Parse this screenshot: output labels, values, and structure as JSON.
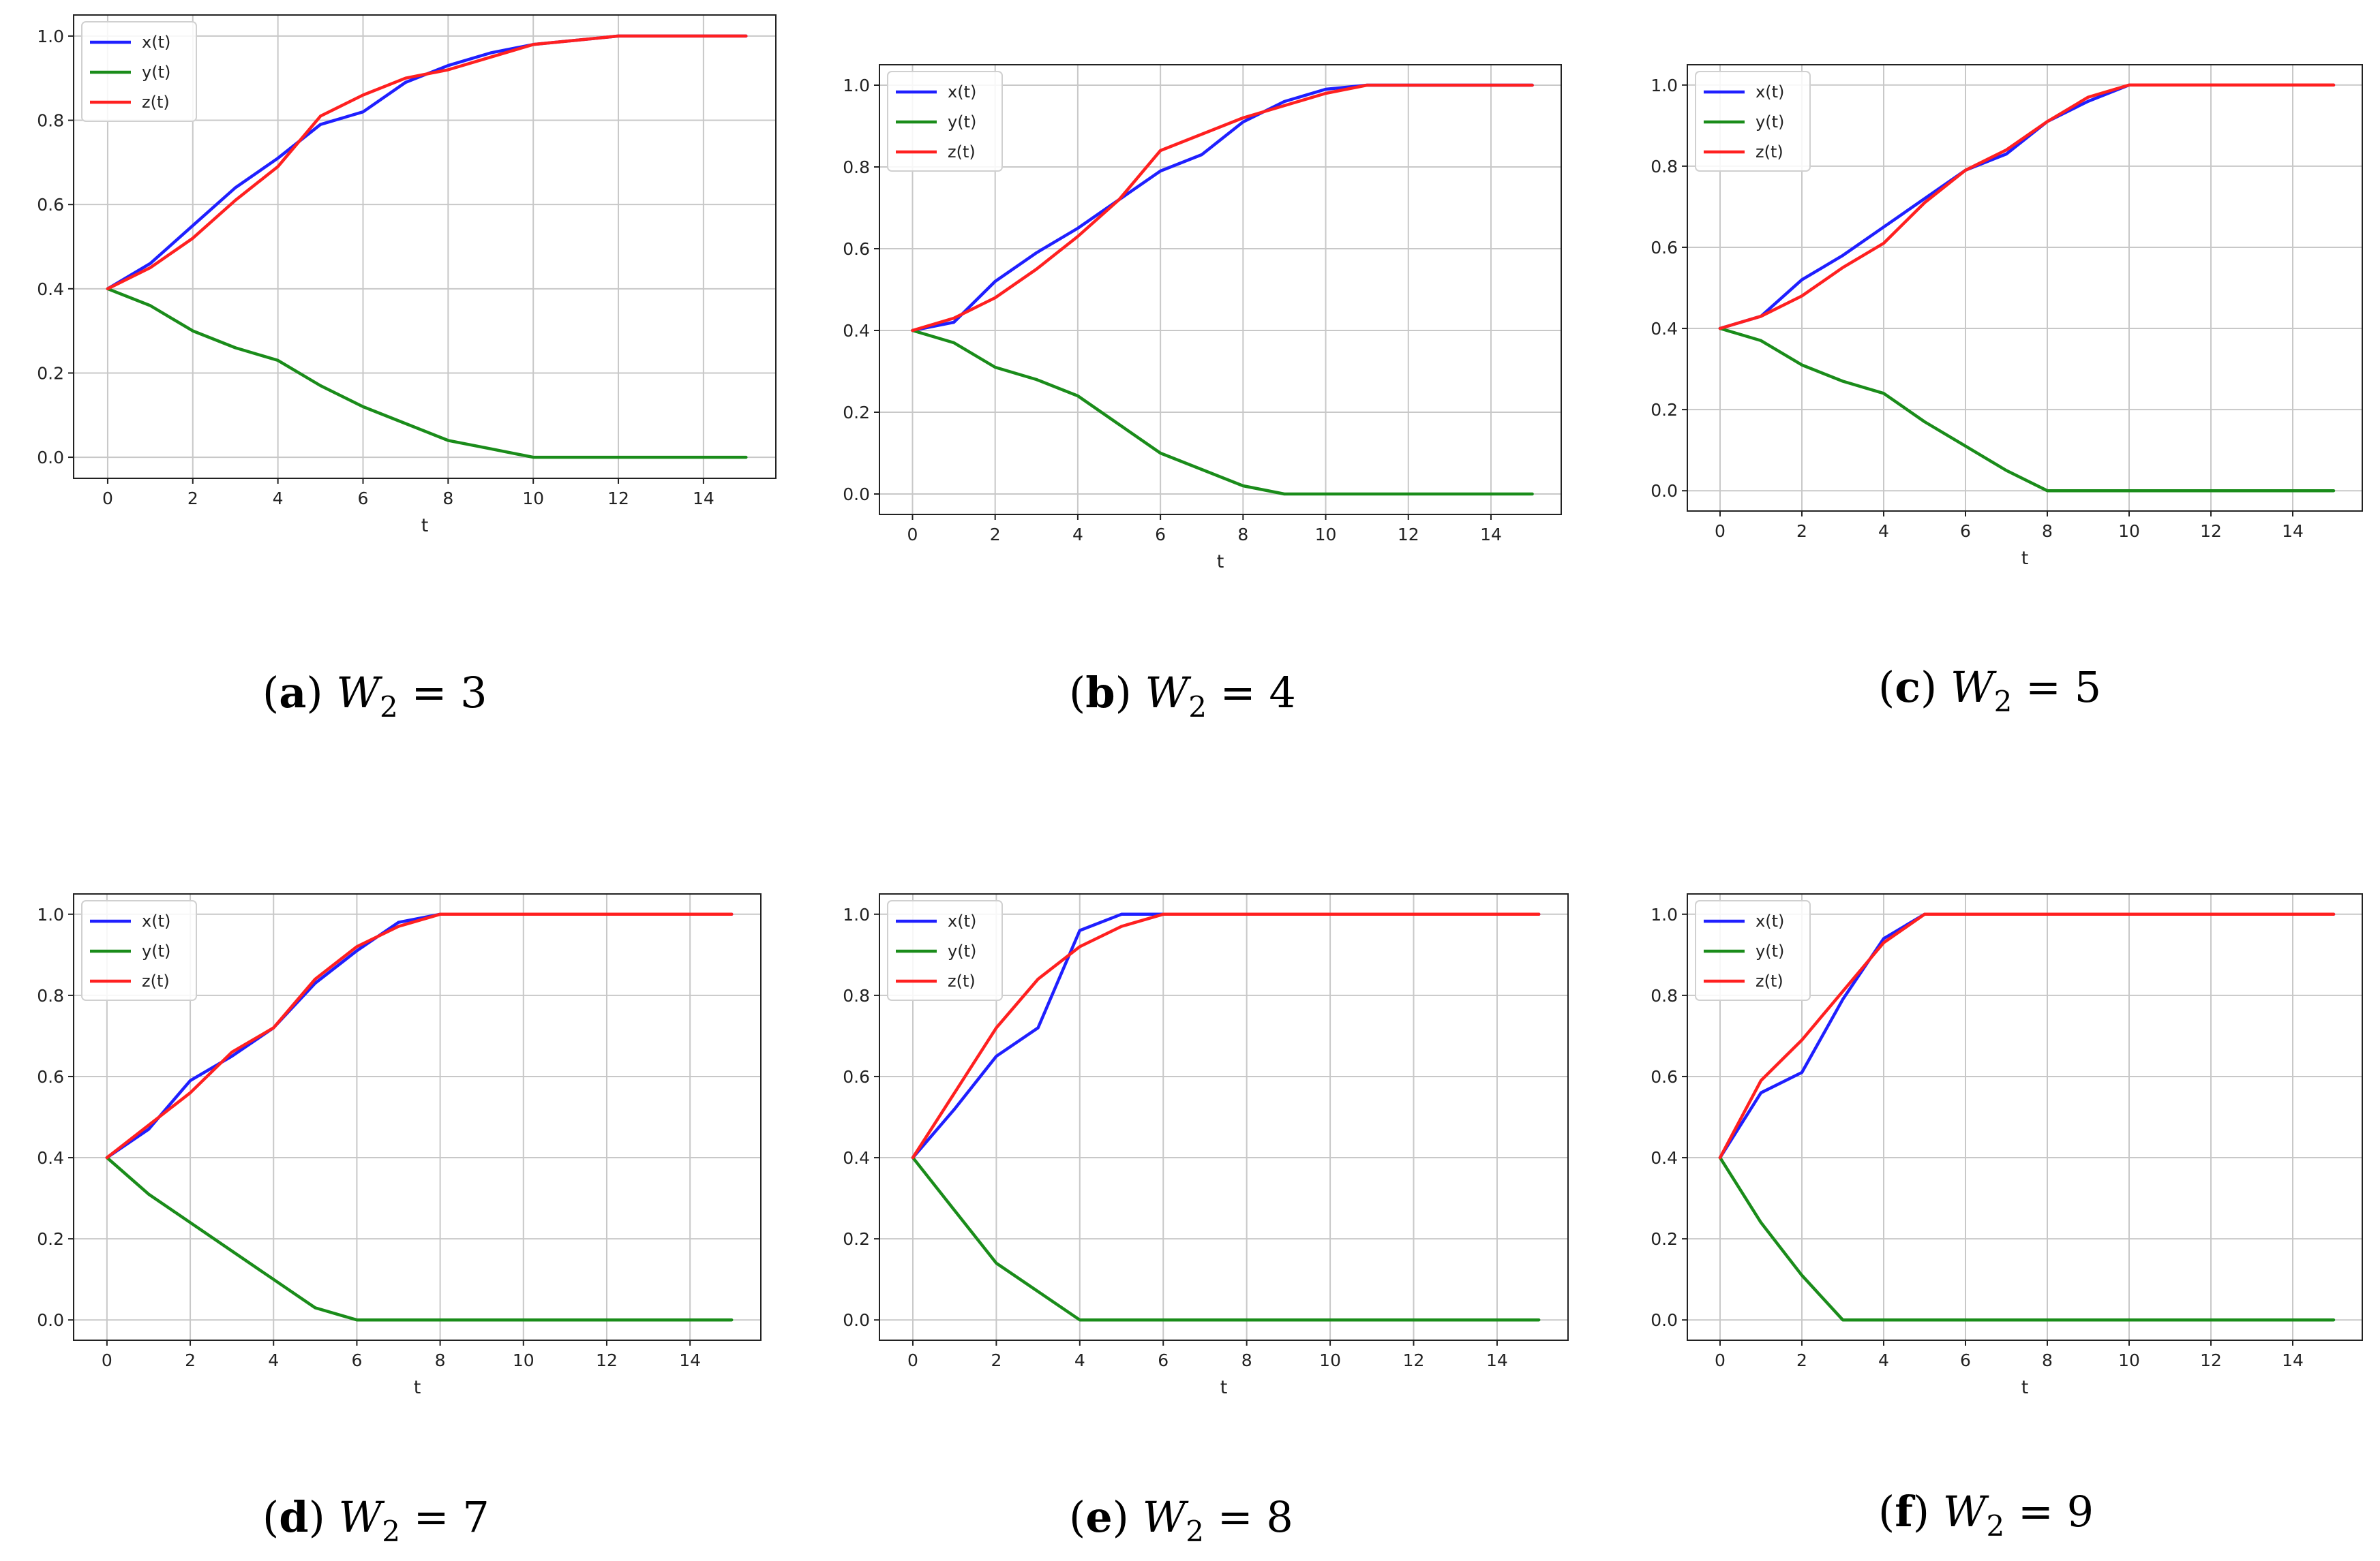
{
  "chart_data": [
    {
      "type": "line",
      "caption_letter": "a",
      "caption_var": "W",
      "caption_sub": "2",
      "caption_rhs": "3",
      "xlabel": "t",
      "ylabel": "",
      "xlim": [
        -0.8,
        15.7
      ],
      "ylim": [
        -0.05,
        1.05
      ],
      "xticks": [
        "0",
        "2",
        "4",
        "6",
        "8",
        "10",
        "12",
        "14"
      ],
      "yticks": [
        "0.0",
        "0.2",
        "0.4",
        "0.6",
        "0.8",
        "1.0"
      ],
      "grid": true,
      "legend_position": "top-left",
      "x": [
        0,
        1,
        2,
        3,
        4,
        5,
        6,
        7,
        8,
        9,
        10,
        11,
        12,
        13,
        14,
        15
      ],
      "series": [
        {
          "name": "x(t)",
          "color": "#1f1fff",
          "values": [
            0.4,
            0.46,
            0.55,
            0.64,
            0.71,
            0.79,
            0.82,
            0.89,
            0.93,
            0.96,
            0.98,
            0.99,
            1.0,
            1.0,
            1.0,
            1.0
          ]
        },
        {
          "name": "y(t)",
          "color": "#1a8c1a",
          "values": [
            0.4,
            0.36,
            0.3,
            0.26,
            0.23,
            0.17,
            0.12,
            0.08,
            0.04,
            0.02,
            0.0,
            0.0,
            0.0,
            0.0,
            0.0,
            0.0
          ]
        },
        {
          "name": "z(t)",
          "color": "#ff2020",
          "values": [
            0.4,
            0.45,
            0.52,
            0.61,
            0.69,
            0.81,
            0.86,
            0.9,
            0.92,
            0.95,
            0.98,
            0.99,
            1.0,
            1.0,
            1.0,
            1.0
          ]
        }
      ]
    },
    {
      "type": "line",
      "caption_letter": "b",
      "caption_var": "W",
      "caption_sub": "2",
      "caption_rhs": "4",
      "xlabel": "t",
      "ylabel": "",
      "xlim": [
        -0.8,
        15.7
      ],
      "ylim": [
        -0.05,
        1.05
      ],
      "xticks": [
        "0",
        "2",
        "4",
        "6",
        "8",
        "10",
        "12",
        "14"
      ],
      "yticks": [
        "0.0",
        "0.2",
        "0.4",
        "0.6",
        "0.8",
        "1.0"
      ],
      "grid": true,
      "legend_position": "top-left",
      "x": [
        0,
        1,
        2,
        3,
        4,
        5,
        6,
        7,
        8,
        9,
        10,
        11,
        12,
        13,
        14,
        15
      ],
      "series": [
        {
          "name": "x(t)",
          "color": "#1f1fff",
          "values": [
            0.4,
            0.42,
            0.52,
            0.59,
            0.65,
            0.72,
            0.79,
            0.83,
            0.91,
            0.96,
            0.99,
            1.0,
            1.0,
            1.0,
            1.0,
            1.0
          ]
        },
        {
          "name": "y(t)",
          "color": "#1a8c1a",
          "values": [
            0.4,
            0.37,
            0.31,
            0.28,
            0.24,
            0.17,
            0.1,
            0.06,
            0.02,
            0.0,
            0.0,
            0.0,
            0.0,
            0.0,
            0.0,
            0.0
          ]
        },
        {
          "name": "z(t)",
          "color": "#ff2020",
          "values": [
            0.4,
            0.43,
            0.48,
            0.55,
            0.63,
            0.72,
            0.84,
            0.88,
            0.92,
            0.95,
            0.98,
            1.0,
            1.0,
            1.0,
            1.0,
            1.0
          ]
        }
      ]
    },
    {
      "type": "line",
      "caption_letter": "c",
      "caption_var": "W",
      "caption_sub": "2",
      "caption_rhs": "5",
      "xlabel": "t",
      "ylabel": "",
      "xlim": [
        -0.8,
        15.7
      ],
      "ylim": [
        -0.05,
        1.05
      ],
      "xticks": [
        "0",
        "2",
        "4",
        "6",
        "8",
        "10",
        "12",
        "14"
      ],
      "yticks": [
        "0.0",
        "0.2",
        "0.4",
        "0.6",
        "0.8",
        "1.0"
      ],
      "grid": true,
      "legend_position": "top-left",
      "x": [
        0,
        1,
        2,
        3,
        4,
        5,
        6,
        7,
        8,
        9,
        10,
        11,
        12,
        13,
        14,
        15
      ],
      "series": [
        {
          "name": "x(t)",
          "color": "#1f1fff",
          "values": [
            0.4,
            0.43,
            0.52,
            0.58,
            0.65,
            0.72,
            0.79,
            0.83,
            0.91,
            0.96,
            1.0,
            1.0,
            1.0,
            1.0,
            1.0,
            1.0
          ]
        },
        {
          "name": "y(t)",
          "color": "#1a8c1a",
          "values": [
            0.4,
            0.37,
            0.31,
            0.27,
            0.24,
            0.17,
            0.11,
            0.05,
            0.0,
            0.0,
            0.0,
            0.0,
            0.0,
            0.0,
            0.0,
            0.0
          ]
        },
        {
          "name": "z(t)",
          "color": "#ff2020",
          "values": [
            0.4,
            0.43,
            0.48,
            0.55,
            0.61,
            0.71,
            0.79,
            0.84,
            0.91,
            0.97,
            1.0,
            1.0,
            1.0,
            1.0,
            1.0,
            1.0
          ]
        }
      ]
    },
    {
      "type": "line",
      "caption_letter": "d",
      "caption_var": "W",
      "caption_sub": "2",
      "caption_rhs": "7",
      "xlabel": "t",
      "ylabel": "",
      "xlim": [
        -0.8,
        15.7
      ],
      "ylim": [
        -0.05,
        1.05
      ],
      "xticks": [
        "0",
        "2",
        "4",
        "6",
        "8",
        "10",
        "12",
        "14"
      ],
      "yticks": [
        "0.0",
        "0.2",
        "0.4",
        "0.6",
        "0.8",
        "1.0"
      ],
      "grid": true,
      "legend_position": "top-left",
      "x": [
        0,
        1,
        2,
        3,
        4,
        5,
        6,
        7,
        8,
        9,
        10,
        11,
        12,
        13,
        14,
        15
      ],
      "series": [
        {
          "name": "x(t)",
          "color": "#1f1fff",
          "values": [
            0.4,
            0.47,
            0.59,
            0.65,
            0.72,
            0.83,
            0.91,
            0.98,
            1.0,
            1.0,
            1.0,
            1.0,
            1.0,
            1.0,
            1.0,
            1.0
          ]
        },
        {
          "name": "y(t)",
          "color": "#1a8c1a",
          "values": [
            0.4,
            0.31,
            0.24,
            0.17,
            0.1,
            0.03,
            0.0,
            0.0,
            0.0,
            0.0,
            0.0,
            0.0,
            0.0,
            0.0,
            0.0,
            0.0
          ]
        },
        {
          "name": "z(t)",
          "color": "#ff2020",
          "values": [
            0.4,
            0.48,
            0.56,
            0.66,
            0.72,
            0.84,
            0.92,
            0.97,
            1.0,
            1.0,
            1.0,
            1.0,
            1.0,
            1.0,
            1.0,
            1.0
          ]
        }
      ]
    },
    {
      "type": "line",
      "caption_letter": "e",
      "caption_var": "W",
      "caption_sub": "2",
      "caption_rhs": "8",
      "xlabel": "t",
      "ylabel": "",
      "xlim": [
        -0.8,
        15.7
      ],
      "ylim": [
        -0.05,
        1.05
      ],
      "xticks": [
        "0",
        "2",
        "4",
        "6",
        "8",
        "10",
        "12",
        "14"
      ],
      "yticks": [
        "0.0",
        "0.2",
        "0.4",
        "0.6",
        "0.8",
        "1.0"
      ],
      "grid": true,
      "legend_position": "top-left",
      "x": [
        0,
        1,
        2,
        3,
        4,
        5,
        6,
        7,
        8,
        9,
        10,
        11,
        12,
        13,
        14,
        15
      ],
      "series": [
        {
          "name": "x(t)",
          "color": "#1f1fff",
          "values": [
            0.4,
            0.52,
            0.65,
            0.72,
            0.96,
            1.0,
            1.0,
            1.0,
            1.0,
            1.0,
            1.0,
            1.0,
            1.0,
            1.0,
            1.0,
            1.0
          ]
        },
        {
          "name": "y(t)",
          "color": "#1a8c1a",
          "values": [
            0.4,
            0.27,
            0.14,
            0.07,
            0.0,
            0.0,
            0.0,
            0.0,
            0.0,
            0.0,
            0.0,
            0.0,
            0.0,
            0.0,
            0.0,
            0.0
          ]
        },
        {
          "name": "z(t)",
          "color": "#ff2020",
          "values": [
            0.4,
            0.56,
            0.72,
            0.84,
            0.92,
            0.97,
            1.0,
            1.0,
            1.0,
            1.0,
            1.0,
            1.0,
            1.0,
            1.0,
            1.0,
            1.0
          ]
        }
      ]
    },
    {
      "type": "line",
      "caption_letter": "f",
      "caption_var": "W",
      "caption_sub": "2",
      "caption_rhs": "9",
      "xlabel": "t",
      "ylabel": "",
      "xlim": [
        -0.8,
        15.7
      ],
      "ylim": [
        -0.05,
        1.05
      ],
      "xticks": [
        "0",
        "2",
        "4",
        "6",
        "8",
        "10",
        "12",
        "14"
      ],
      "yticks": [
        "0.0",
        "0.2",
        "0.4",
        "0.6",
        "0.8",
        "1.0"
      ],
      "grid": true,
      "legend_position": "top-left",
      "x": [
        0,
        1,
        2,
        3,
        4,
        5,
        6,
        7,
        8,
        9,
        10,
        11,
        12,
        13,
        14,
        15
      ],
      "series": [
        {
          "name": "x(t)",
          "color": "#1f1fff",
          "values": [
            0.4,
            0.56,
            0.61,
            0.79,
            0.94,
            1.0,
            1.0,
            1.0,
            1.0,
            1.0,
            1.0,
            1.0,
            1.0,
            1.0,
            1.0,
            1.0
          ]
        },
        {
          "name": "y(t)",
          "color": "#1a8c1a",
          "values": [
            0.4,
            0.24,
            0.11,
            0.0,
            0.0,
            0.0,
            0.0,
            0.0,
            0.0,
            0.0,
            0.0,
            0.0,
            0.0,
            0.0,
            0.0,
            0.0
          ]
        },
        {
          "name": "z(t)",
          "color": "#ff2020",
          "values": [
            0.4,
            0.59,
            0.69,
            0.81,
            0.93,
            1.0,
            1.0,
            1.0,
            1.0,
            1.0,
            1.0,
            1.0,
            1.0,
            1.0,
            1.0,
            1.0
          ]
        }
      ]
    }
  ]
}
